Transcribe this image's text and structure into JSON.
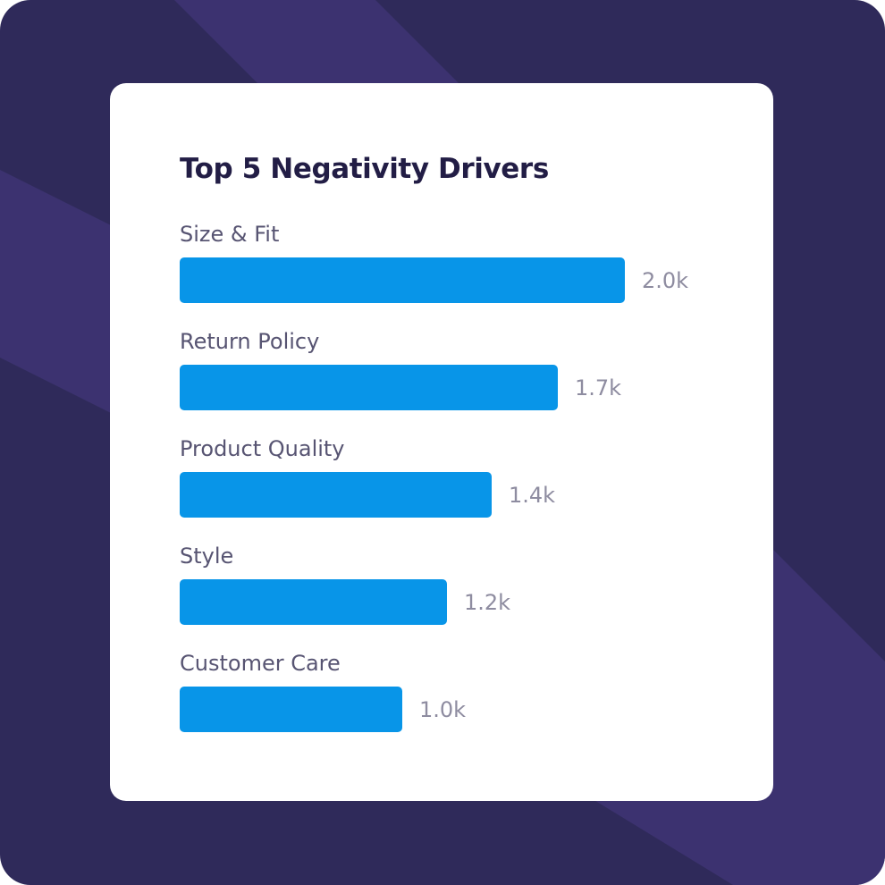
{
  "colors": {
    "background": "#2f2a5a",
    "stripe": "#3c3270",
    "card": "#ffffff",
    "bar": "#0895e8",
    "title": "#221d45",
    "category_label": "#575472",
    "value_label": "#8e8ca0"
  },
  "chart_data": {
    "type": "bar",
    "orientation": "horizontal",
    "title": "Top 5 Negativity Drivers",
    "categories": [
      "Size & Fit",
      "Return Policy",
      "Product Quality",
      "Style",
      "Customer Care"
    ],
    "values": [
      2000,
      1700,
      1400,
      1200,
      1000
    ],
    "value_labels": [
      "2.0k",
      "1.7k",
      "1.4k",
      "1.2k",
      "1.0k"
    ],
    "xlim": [
      0,
      2000
    ],
    "grid": false,
    "legend": "none"
  }
}
